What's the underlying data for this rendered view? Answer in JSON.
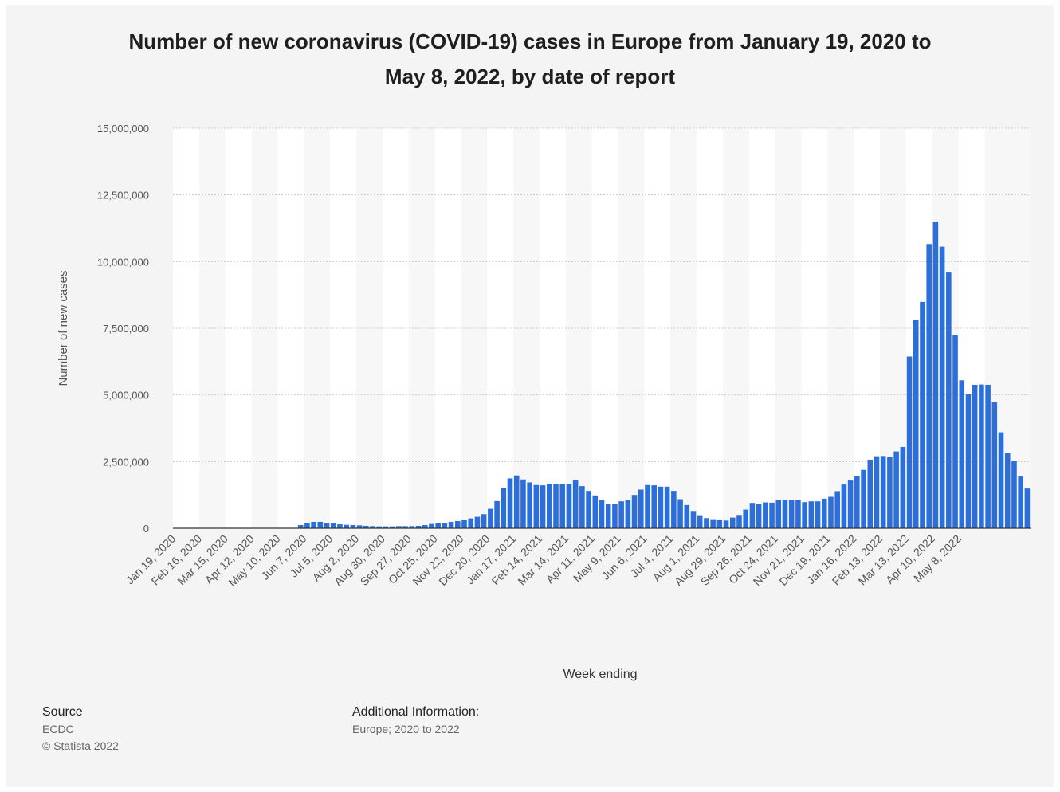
{
  "title_line1": "Number of new coronavirus (COVID-19) cases in Europe from January 19, 2020 to",
  "title_line2": "May 8, 2022, by date of report",
  "source_label": "Source",
  "source_lines": [
    "ECDC",
    "© Statista 2022"
  ],
  "additional_label": "Additional Information:",
  "additional_text": "Europe; 2020 to 2022",
  "colors": {
    "bar": "#2c6fdb",
    "band": "#ffffff",
    "plot_bg": "#f7f7f7",
    "grid": "#cccccc",
    "axis_text": "#555555"
  },
  "chart_data": {
    "type": "bar",
    "xlabel": "Week ending",
    "ylabel": "Number of new cases",
    "ylim": [
      0,
      15000000
    ],
    "yticks": [
      0,
      2500000,
      5000000,
      7500000,
      10000000,
      12500000,
      15000000
    ],
    "ytick_labels": [
      "0",
      "2,500,000",
      "5,000,000",
      "7,500,000",
      "10,000,000",
      "12,500,000",
      "15,000,000"
    ],
    "grid": true,
    "xtick_labels": [
      "Jan 19, 2020",
      "Feb 16, 2020",
      "Mar 15, 2020",
      "Apr 12, 2020",
      "May 10, 2020",
      "Jun 7, 2020",
      "Jul 5, 2020",
      "Aug 2, 2020",
      "Aug 30, 2020",
      "Sep 27, 2020",
      "Oct 25, 2020",
      "Nov 22, 2020",
      "Dec 20, 2020",
      "Jan 17, 2021",
      "Feb 14, 2021",
      "Mar 14, 2021",
      "Apr 11, 2021",
      "May 9, 2021",
      "Jun 6, 2021",
      "Jul 4, 2021",
      "Aug 1, 2021",
      "Aug 29, 2021",
      "Sep 26, 2021",
      "Oct 24, 2021",
      "Nov 21, 2021",
      "Dec 19, 2021",
      "Jan 16, 2022",
      "Feb 13, 2022",
      "Mar 13, 2022",
      "Apr 10, 2022",
      "May 8, 2022"
    ],
    "series": [
      {
        "values": [
          0,
          0,
          0,
          0,
          0,
          0,
          0,
          0,
          0,
          0,
          0,
          0,
          0,
          0,
          0,
          0,
          0,
          0,
          0,
          120000,
          190000,
          240000,
          240000,
          200000,
          180000,
          150000,
          130000,
          120000,
          110000,
          90000,
          80000,
          70000,
          70000,
          70000,
          80000,
          80000,
          80000,
          90000,
          120000,
          160000,
          190000,
          210000,
          240000,
          270000,
          320000,
          370000,
          430000,
          530000,
          730000,
          1020000,
          1500000,
          1870000,
          1980000,
          1830000,
          1720000,
          1620000,
          1610000,
          1650000,
          1660000,
          1650000,
          1650000,
          1810000,
          1580000,
          1400000,
          1230000,
          1060000,
          920000,
          910000,
          1010000,
          1060000,
          1250000,
          1450000,
          1620000,
          1610000,
          1560000,
          1560000,
          1400000,
          1090000,
          870000,
          650000,
          490000,
          380000,
          340000,
          330000,
          290000,
          400000,
          500000,
          700000,
          950000,
          920000,
          970000,
          960000,
          1060000,
          1070000,
          1060000,
          1060000,
          980000,
          1010000,
          1010000,
          1110000,
          1180000,
          1390000,
          1640000,
          1790000,
          1970000,
          2190000,
          2570000,
          2700000,
          2710000,
          2680000,
          2880000,
          3050000,
          6440000,
          7820000,
          8490000,
          10660000,
          11500000,
          10560000,
          9590000,
          7240000,
          5550000,
          5020000,
          5380000,
          5390000,
          5380000,
          4740000,
          3600000,
          2830000,
          2520000,
          1940000,
          1490000
        ]
      }
    ]
  }
}
